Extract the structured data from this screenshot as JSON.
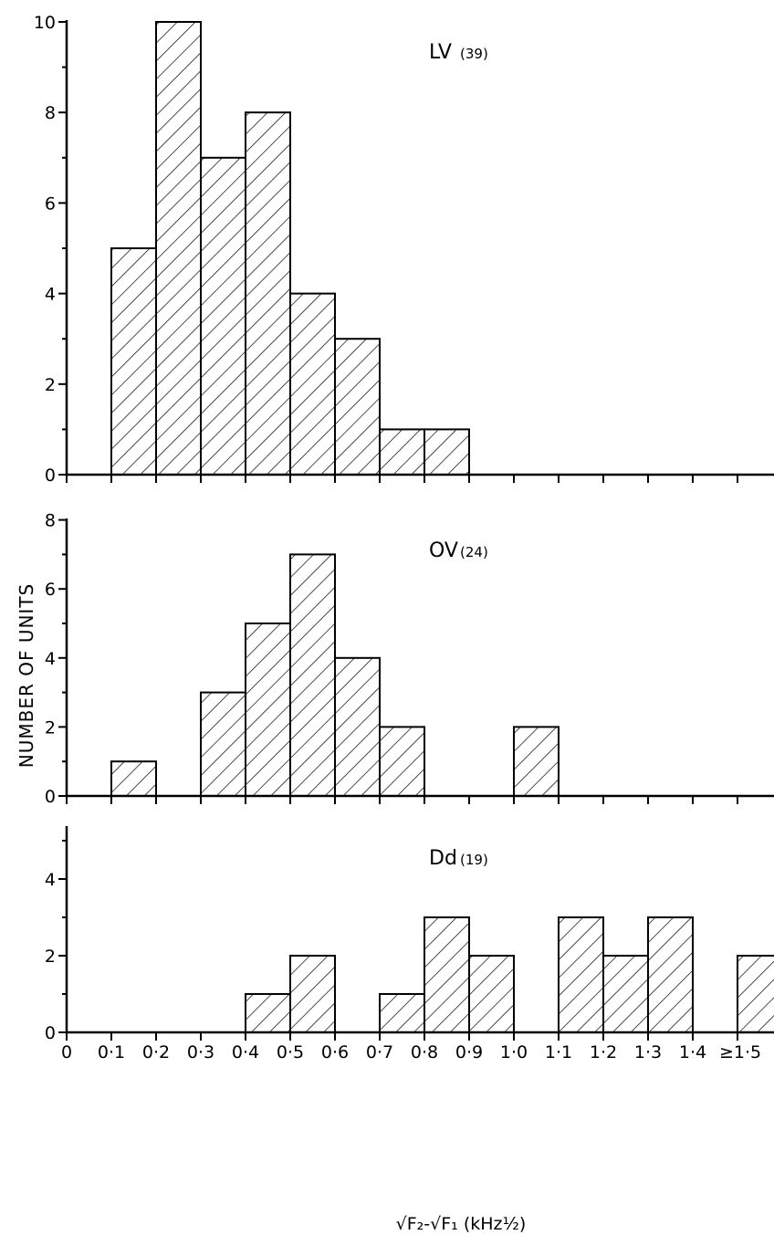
{
  "chart_data": [
    {
      "type": "bar",
      "panel_label": "LV",
      "panel_count": "(39)",
      "bin_edges": [
        0,
        0.1,
        0.2,
        0.3,
        0.4,
        0.5,
        0.6,
        0.7,
        0.8,
        0.9,
        1.0,
        1.1,
        1.2,
        1.3,
        1.4,
        1.5
      ],
      "values": [
        0,
        5,
        10,
        7,
        8,
        4,
        3,
        1,
        1,
        0,
        0,
        0,
        0,
        0,
        0,
        0
      ],
      "ylim": [
        0,
        10
      ],
      "yticks": [
        "0",
        "2",
        "4",
        "6",
        "8",
        "10"
      ]
    },
    {
      "type": "bar",
      "panel_label": "OV",
      "panel_count": "(24)",
      "bin_edges": [
        0,
        0.1,
        0.2,
        0.3,
        0.4,
        0.5,
        0.6,
        0.7,
        0.8,
        0.9,
        1.0,
        1.1,
        1.2,
        1.3,
        1.4,
        1.5
      ],
      "values": [
        0,
        1,
        0,
        3,
        5,
        7,
        4,
        2,
        0,
        0,
        2,
        0,
        0,
        0,
        0,
        0
      ],
      "ylim": [
        0,
        8
      ],
      "yticks": [
        "0",
        "2",
        "4",
        "6",
        "8"
      ]
    },
    {
      "type": "bar",
      "panel_label": "Dd",
      "panel_count": "(19)",
      "bin_edges": [
        0,
        0.1,
        0.2,
        0.3,
        0.4,
        0.5,
        0.6,
        0.7,
        0.8,
        0.9,
        1.0,
        1.1,
        1.2,
        1.3,
        1.4,
        1.5
      ],
      "values": [
        0,
        0,
        0,
        0,
        1,
        2,
        0,
        1,
        3,
        2,
        0,
        3,
        2,
        3,
        0,
        2
      ],
      "ylim": [
        0,
        5
      ],
      "yticks": [
        "0",
        "2",
        "4"
      ]
    }
  ],
  "shared": {
    "ylabel": "NUMBER OF UNITS",
    "xlabel": "√F₂-√F₁ (kHz½)",
    "xtick_labels": [
      "0",
      "0·1",
      "0·2",
      "0·3",
      "0·4",
      "0·5",
      "0·6",
      "0·7",
      "0·8",
      "0·9",
      "1·0",
      "1·1",
      "1·2",
      "1·3",
      "1·4",
      "≥1·5"
    ]
  }
}
